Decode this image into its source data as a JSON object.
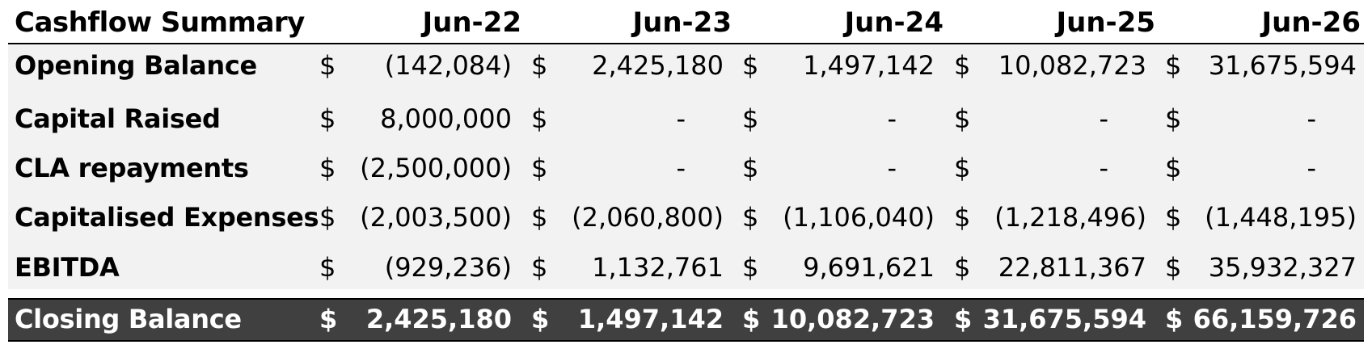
{
  "table": {
    "title": "Cashflow Summary",
    "columns": [
      "Jun-22",
      "Jun-23",
      "Jun-24",
      "Jun-25",
      "Jun-26"
    ],
    "currency_symbol": "$",
    "rows": [
      {
        "label": "Opening Balance",
        "values": [
          "(142,084)",
          "2,425,180",
          "1,497,142",
          "10,082,723",
          "31,675,594"
        ]
      },
      {
        "label": "Capital Raised",
        "values": [
          "8,000,000",
          "-",
          "-",
          "-",
          "-"
        ]
      },
      {
        "label": "CLA repayments",
        "values": [
          "(2,500,000)",
          "-",
          "-",
          "-",
          "-"
        ]
      },
      {
        "label": "Capitalised Expenses",
        "values": [
          "(2,003,500)",
          "(2,060,800)",
          "(1,106,040)",
          "(1,218,496)",
          "(1,448,195)"
        ]
      },
      {
        "label": "EBITDA",
        "values": [
          "(929,236)",
          "1,132,761",
          "9,691,621",
          "22,811,367",
          "35,932,327"
        ]
      }
    ],
    "total": {
      "label": "Closing Balance",
      "values": [
        "2,425,180",
        "1,497,142",
        "10,082,723",
        "31,675,594",
        "66,159,726"
      ]
    }
  },
  "colors": {
    "band_background": "#f2f2f2",
    "total_background": "#404040",
    "total_text": "#ffffff"
  }
}
